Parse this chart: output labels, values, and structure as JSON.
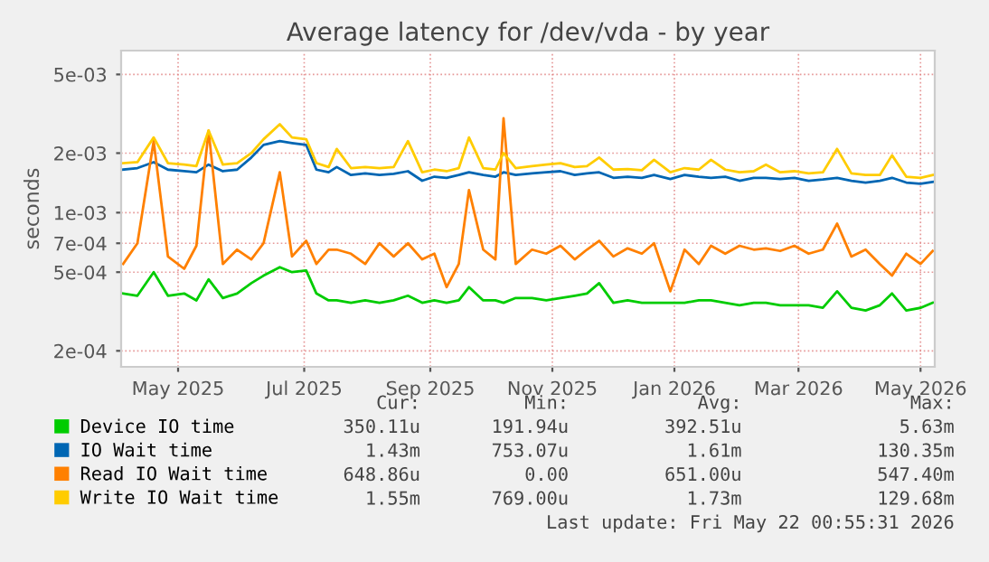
{
  "chart_data": {
    "type": "line",
    "title": "Average latency for /dev/vda - by year",
    "ylabel": "seconds",
    "log": "y",
    "grid": true,
    "legend": "bottom",
    "line_style": "solid",
    "marker": "none",
    "xlim": [
      "2025-04-17",
      "2026-05-22"
    ],
    "xticks": [
      {
        "value": "2025-05-15",
        "label": "May 2025"
      },
      {
        "value": "2025-07-16",
        "label": "Jul 2025"
      },
      {
        "value": "2025-09-16",
        "label": "Sep 2025"
      },
      {
        "value": "2025-11-15",
        "label": "Nov 2025"
      },
      {
        "value": "2026-01-14",
        "label": "Jan 2026"
      },
      {
        "value": "2026-03-16",
        "label": "Mar 2026"
      },
      {
        "value": "2026-05-15",
        "label": "May 2026"
      }
    ],
    "ylim": [
      0.000166,
      0.0066
    ],
    "yticks": [
      {
        "value": 0.0002,
        "label": "2e-04"
      },
      {
        "value": 0.0005,
        "label": "5e-04"
      },
      {
        "value": 0.0007,
        "label": "7e-04"
      },
      {
        "value": 0.001,
        "label": "1e-03"
      },
      {
        "value": 0.002,
        "label": "2e-03"
      },
      {
        "value": 0.005,
        "label": "5e-03"
      }
    ],
    "x": [
      "2025-04-18",
      "2025-04-25",
      "2025-05-03",
      "2025-05-10",
      "2025-05-18",
      "2025-05-24",
      "2025-05-30",
      "2025-06-06",
      "2025-06-13",
      "2025-06-20",
      "2025-06-26",
      "2025-07-04",
      "2025-07-10",
      "2025-07-17",
      "2025-07-22",
      "2025-07-28",
      "2025-08-01",
      "2025-08-08",
      "2025-08-15",
      "2025-08-22",
      "2025-08-29",
      "2025-09-05",
      "2025-09-12",
      "2025-09-18",
      "2025-09-24",
      "2025-09-30",
      "2025-10-05",
      "2025-10-12",
      "2025-10-18",
      "2025-10-22",
      "2025-10-28",
      "2025-11-05",
      "2025-11-12",
      "2025-11-19",
      "2025-11-26",
      "2025-12-02",
      "2025-12-08",
      "2025-12-15",
      "2025-12-22",
      "2025-12-29",
      "2026-01-04",
      "2026-01-12",
      "2026-01-19",
      "2026-01-26",
      "2026-02-01",
      "2026-02-08",
      "2026-02-15",
      "2026-02-22",
      "2026-02-28",
      "2026-03-07",
      "2026-03-14",
      "2026-03-21",
      "2026-03-28",
      "2026-04-04",
      "2026-04-11",
      "2026-04-18",
      "2026-04-25",
      "2026-05-01",
      "2026-05-08",
      "2026-05-15",
      "2026-05-21"
    ],
    "series": [
      {
        "name": "Device IO time",
        "color": "#00cc00",
        "values": [
          0.00039,
          0.00038,
          0.0005,
          0.00038,
          0.00039,
          0.00036,
          0.00046,
          0.00037,
          0.00039,
          0.00044,
          0.00048,
          0.00053,
          0.0005,
          0.00051,
          0.00039,
          0.00036,
          0.00036,
          0.00035,
          0.00036,
          0.00035,
          0.00036,
          0.00038,
          0.00035,
          0.00036,
          0.00035,
          0.00036,
          0.00042,
          0.00036,
          0.00036,
          0.00035,
          0.00037,
          0.00037,
          0.00036,
          0.00037,
          0.00038,
          0.00039,
          0.00044,
          0.00035,
          0.00036,
          0.00035,
          0.00035,
          0.00035,
          0.00035,
          0.00036,
          0.00036,
          0.00035,
          0.00034,
          0.00035,
          0.00035,
          0.00034,
          0.00034,
          0.00034,
          0.00033,
          0.0004,
          0.00033,
          0.00032,
          0.00034,
          0.00039,
          0.00032,
          0.00033,
          0.00035
        ]
      },
      {
        "name": "IO Wait time",
        "color": "#0066b3",
        "values": [
          0.00165,
          0.00168,
          0.0018,
          0.00165,
          0.00162,
          0.0016,
          0.00175,
          0.00162,
          0.00165,
          0.0019,
          0.0022,
          0.0023,
          0.00225,
          0.0022,
          0.00165,
          0.0016,
          0.0017,
          0.00155,
          0.00158,
          0.00155,
          0.00157,
          0.00162,
          0.00145,
          0.00152,
          0.0015,
          0.00155,
          0.0016,
          0.00155,
          0.00152,
          0.0016,
          0.00155,
          0.00158,
          0.0016,
          0.00162,
          0.00155,
          0.00158,
          0.0016,
          0.0015,
          0.00152,
          0.0015,
          0.00155,
          0.00148,
          0.00155,
          0.00152,
          0.0015,
          0.00152,
          0.00145,
          0.0015,
          0.0015,
          0.00148,
          0.0015,
          0.00145,
          0.00147,
          0.0015,
          0.00145,
          0.00142,
          0.00145,
          0.0015,
          0.00142,
          0.0014,
          0.00143
        ]
      },
      {
        "name": "Read IO Wait time",
        "color": "#ff8000",
        "values": [
          0.00055,
          0.0007,
          0.0023,
          0.0006,
          0.00052,
          0.00068,
          0.0026,
          0.00055,
          0.00065,
          0.00058,
          0.0007,
          0.0016,
          0.0006,
          0.00072,
          0.00055,
          0.00065,
          0.00065,
          0.00062,
          0.00055,
          0.0007,
          0.0006,
          0.0007,
          0.00058,
          0.00062,
          0.00042,
          0.00055,
          0.0013,
          0.00065,
          0.00058,
          0.003,
          0.00055,
          0.00065,
          0.00062,
          0.00068,
          0.00058,
          0.00065,
          0.00072,
          0.0006,
          0.00066,
          0.00062,
          0.0007,
          0.0004,
          0.00065,
          0.00055,
          0.00068,
          0.00062,
          0.00068,
          0.00065,
          0.00066,
          0.00064,
          0.00068,
          0.00062,
          0.00065,
          0.00088,
          0.0006,
          0.00065,
          0.00055,
          0.00048,
          0.00062,
          0.00055,
          0.00064
        ]
      },
      {
        "name": "Write IO Wait time",
        "color": "#ffcc00",
        "values": [
          0.00178,
          0.0018,
          0.0024,
          0.00178,
          0.00175,
          0.00172,
          0.0026,
          0.00175,
          0.00178,
          0.002,
          0.00235,
          0.0028,
          0.0024,
          0.00235,
          0.00178,
          0.0017,
          0.0021,
          0.00168,
          0.0017,
          0.00168,
          0.0017,
          0.0023,
          0.0016,
          0.00165,
          0.00162,
          0.00168,
          0.0024,
          0.00168,
          0.00165,
          0.002,
          0.00168,
          0.00172,
          0.00175,
          0.00178,
          0.0017,
          0.00172,
          0.0019,
          0.00165,
          0.00166,
          0.00164,
          0.00185,
          0.0016,
          0.00168,
          0.00165,
          0.00185,
          0.00165,
          0.0016,
          0.00162,
          0.00175,
          0.0016,
          0.00162,
          0.00158,
          0.0016,
          0.0021,
          0.00158,
          0.00155,
          0.00155,
          0.00195,
          0.00152,
          0.0015,
          0.00155
        ]
      }
    ],
    "annotations": [
      "Cur:",
      "Min:",
      "Avg:",
      "Max:",
      "350.11u",
      "191.94u",
      "392.51u",
      "5.63m",
      "1.43m",
      "753.07u",
      "1.61m",
      "130.35m",
      "648.86u",
      "0.00",
      "651.00u",
      "547.40m",
      "1.55m",
      "769.00u",
      "1.73m",
      "129.68m",
      "Last update: Fri May 22 00:55:31 2026"
    ]
  }
}
